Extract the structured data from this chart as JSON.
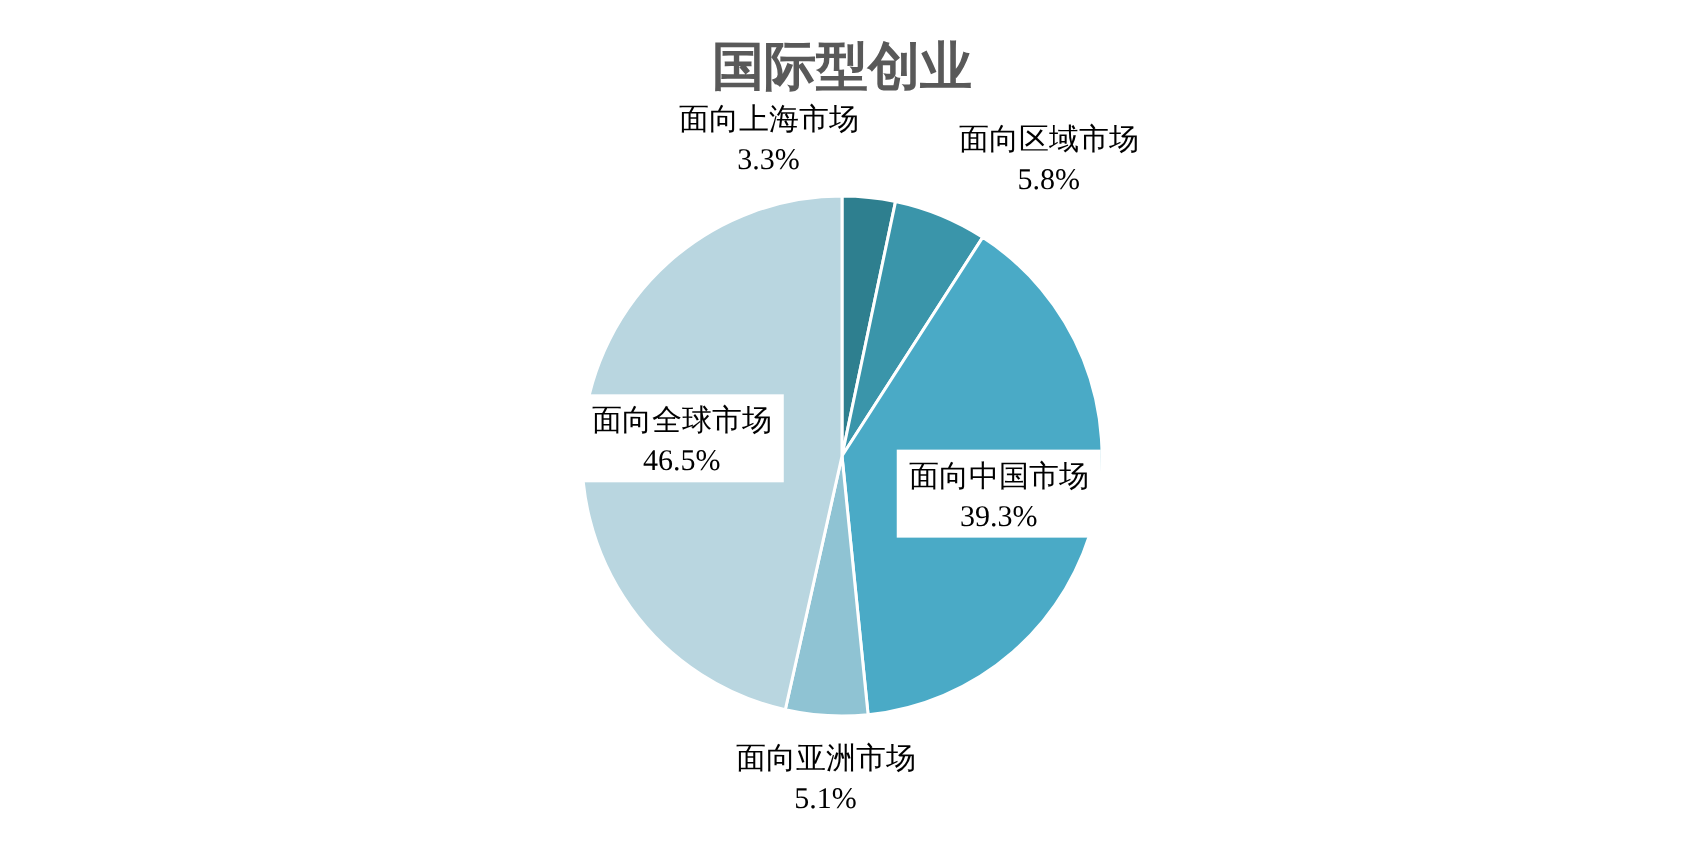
{
  "chart_data": {
    "type": "pie",
    "title": "国际型创业",
    "categories": [
      "面向上海市场",
      "面向区域市场",
      "面向中国市场",
      "面向亚洲市场",
      "面向全球市场"
    ],
    "values": [
      3.3,
      5.8,
      39.3,
      5.1,
      46.5
    ],
    "colors": [
      "#2e7f8f",
      "#3a95aa",
      "#4aaac6",
      "#8fc3d3",
      "#b9d6e0"
    ],
    "value_labels": [
      "3.3%",
      "5.8%",
      "39.3%",
      "5.1%",
      "46.5%"
    ]
  }
}
